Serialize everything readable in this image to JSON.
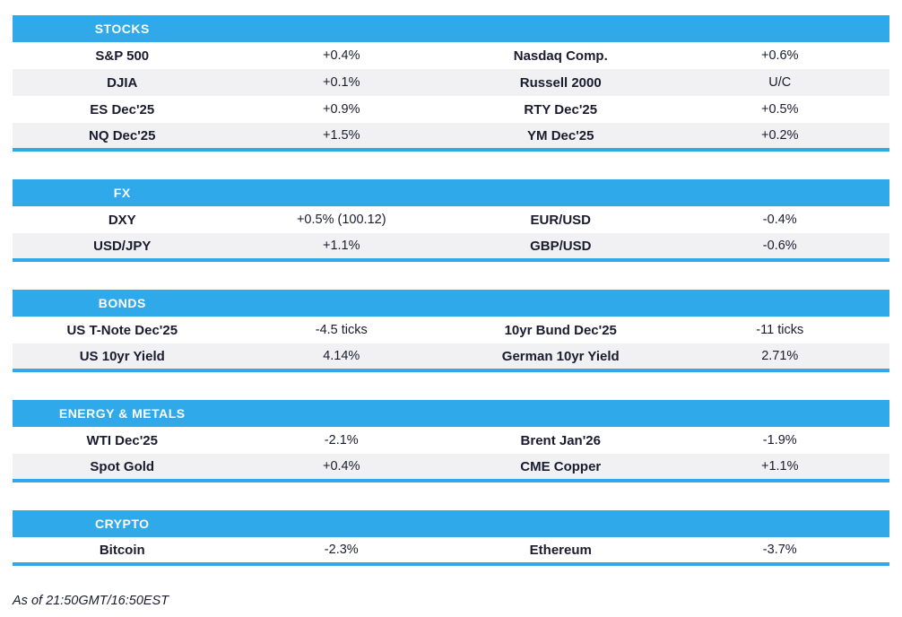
{
  "page": {
    "accent_color": "#2fa9e9",
    "alt_row_color": "#f1f1f3",
    "text_color": "#1b1b2f",
    "header_text_color": "#ffffff",
    "footer": "As of 21:50GMT/16:50EST"
  },
  "sections": [
    {
      "title": "STOCKS",
      "rows": [
        {
          "left_label": "S&P 500",
          "left_value": "+0.4%",
          "right_label": "Nasdaq Comp.",
          "right_value": "+0.6%"
        },
        {
          "left_label": "DJIA",
          "left_value": "+0.1%",
          "right_label": "Russell 2000",
          "right_value": "U/C"
        },
        {
          "left_label": "ES Dec'25",
          "left_value": "+0.9%",
          "right_label": "RTY Dec'25",
          "right_value": "+0.5%"
        },
        {
          "left_label": "NQ Dec'25",
          "left_value": "+1.5%",
          "right_label": "YM Dec'25",
          "right_value": "+0.2%"
        }
      ]
    },
    {
      "title": "FX",
      "rows": [
        {
          "left_label": "DXY",
          "left_value": "+0.5% (100.12)",
          "right_label": "EUR/USD",
          "right_value": "-0.4%"
        },
        {
          "left_label": "USD/JPY",
          "left_value": "+1.1%",
          "right_label": "GBP/USD",
          "right_value": "-0.6%"
        }
      ]
    },
    {
      "title": "BONDS",
      "rows": [
        {
          "left_label": "US T-Note Dec'25",
          "left_value": "-4.5 ticks",
          "right_label": "10yr Bund Dec'25",
          "right_value": "-11 ticks"
        },
        {
          "left_label": "US 10yr Yield",
          "left_value": "4.14%",
          "right_label": "German 10yr Yield",
          "right_value": "2.71%"
        }
      ]
    },
    {
      "title": "ENERGY & METALS",
      "rows": [
        {
          "left_label": "WTI Dec'25",
          "left_value": "-2.1%",
          "right_label": "Brent Jan'26",
          "right_value": "-1.9%"
        },
        {
          "left_label": "Spot Gold",
          "left_value": "+0.4%",
          "right_label": "CME Copper",
          "right_value": "+1.1%"
        }
      ]
    },
    {
      "title": "CRYPTO",
      "rows": [
        {
          "left_label": "Bitcoin",
          "left_value": "-2.3%",
          "right_label": "Ethereum",
          "right_value": "-3.7%"
        }
      ]
    }
  ]
}
